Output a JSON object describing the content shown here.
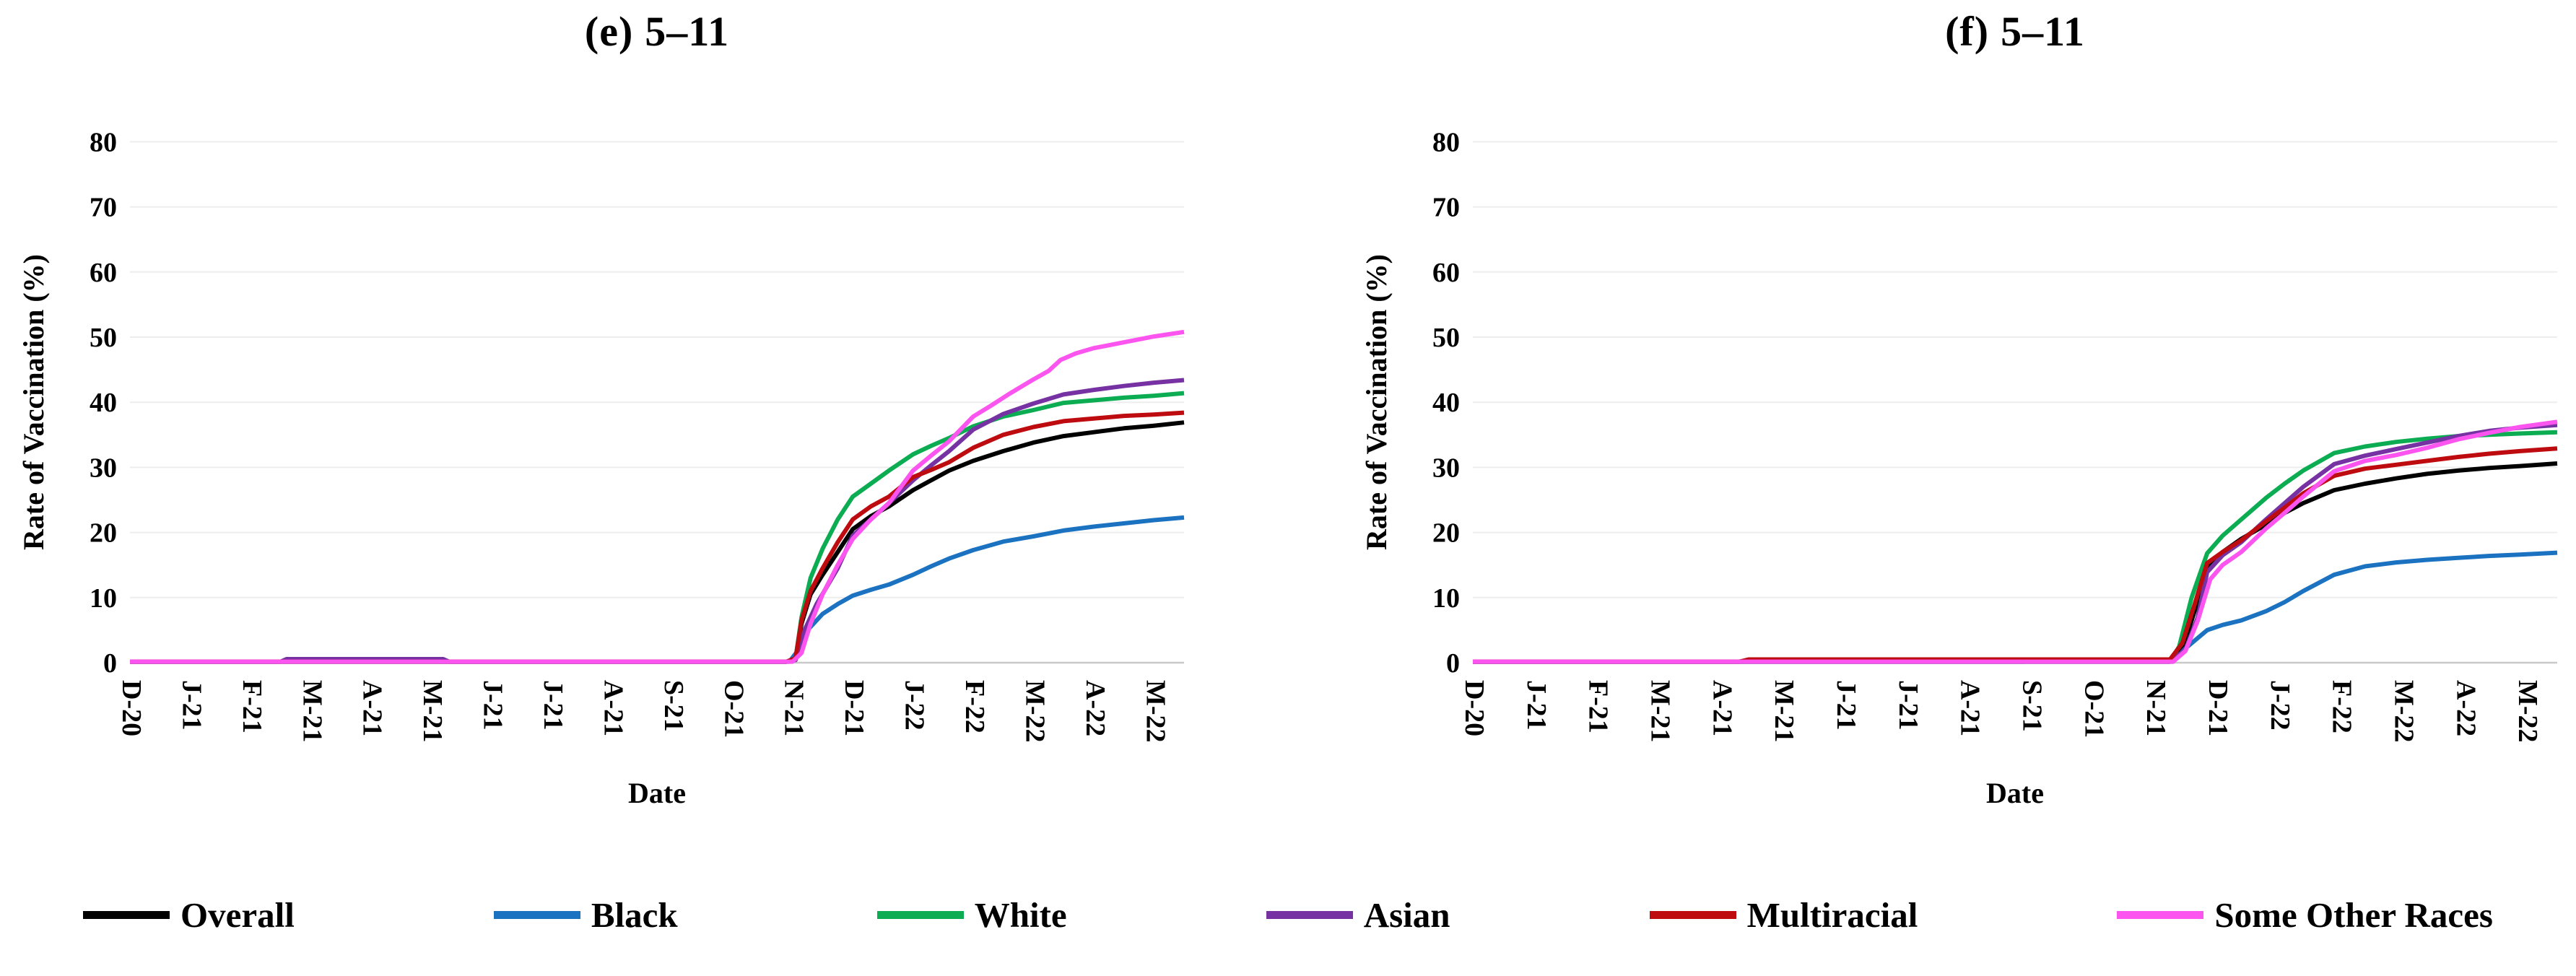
{
  "colors": {
    "overall": "#000000",
    "black": "#1B72C1",
    "white": "#0CAD52",
    "asian": "#7632A3",
    "multiracial": "#BE0B10",
    "some_other_races": "#FB54EF"
  },
  "legend": {
    "items": [
      {
        "label": "Overall",
        "color_key": "overall"
      },
      {
        "label": "Black",
        "color_key": "black"
      },
      {
        "label": "White",
        "color_key": "white"
      },
      {
        "label": "Asian",
        "color_key": "asian"
      },
      {
        "label": "Multiracial",
        "color_key": "multiracial"
      },
      {
        "label": "Some Other Races",
        "color_key": "some_other_races"
      }
    ]
  },
  "chart_data": [
    {
      "type": "line",
      "title": "(e) 5–11",
      "title_marker": "(e)",
      "title_rest": "5–11",
      "xlabel": "Date",
      "ylabel": "Rate of Vaccination (%)",
      "ylim": [
        0,
        80
      ],
      "y_ticks": [
        0,
        10,
        20,
        30,
        40,
        50,
        60,
        70,
        80
      ],
      "x_tick_labels": [
        "D-20",
        "J-21",
        "F-21",
        "M-21",
        "A-21",
        "M-21",
        "J-21",
        "J-21",
        "A-21",
        "S-21",
        "O-21",
        "N-21",
        "D-21",
        "J-22",
        "F-22",
        "M-22",
        "A-22",
        "M-22"
      ],
      "x_unit": "months since Dec 2020",
      "grid": "horizontal-light",
      "legend_position": "bottom-shared",
      "series": [
        {
          "name": "Overall",
          "color_key": "overall",
          "points": [
            [
              0,
              0.15
            ],
            [
              10.9,
              0.15
            ],
            [
              11.05,
              0.5
            ],
            [
              11.15,
              6
            ],
            [
              11.3,
              10.5
            ],
            [
              11.5,
              13.5
            ],
            [
              11.75,
              17
            ],
            [
              12,
              20.5
            ],
            [
              12.3,
              22.5
            ],
            [
              12.6,
              24
            ],
            [
              13,
              26.5
            ],
            [
              13.3,
              28
            ],
            [
              13.6,
              29.5
            ],
            [
              14,
              31
            ],
            [
              14.5,
              32.5
            ],
            [
              15,
              33.8
            ],
            [
              15.5,
              34.8
            ],
            [
              16,
              35.4
            ],
            [
              16.5,
              36
            ],
            [
              17,
              36.4
            ],
            [
              17.5,
              36.9
            ]
          ]
        },
        {
          "name": "Black",
          "color_key": "black",
          "points": [
            [
              0,
              0.15
            ],
            [
              10.95,
              0.15
            ],
            [
              11.1,
              2
            ],
            [
              11.25,
              5
            ],
            [
              11.5,
              7.5
            ],
            [
              11.75,
              9
            ],
            [
              12,
              10.3
            ],
            [
              12.3,
              11.2
            ],
            [
              12.6,
              12
            ],
            [
              13,
              13.5
            ],
            [
              13.3,
              14.8
            ],
            [
              13.6,
              16
            ],
            [
              14,
              17.3
            ],
            [
              14.5,
              18.6
            ],
            [
              15,
              19.4
            ],
            [
              15.5,
              20.3
            ],
            [
              16,
              20.9
            ],
            [
              16.5,
              21.4
            ],
            [
              17,
              21.9
            ],
            [
              17.5,
              22.3
            ]
          ]
        },
        {
          "name": "White",
          "color_key": "white",
          "points": [
            [
              0,
              0.15
            ],
            [
              10.9,
              0.15
            ],
            [
              11.05,
              0.6
            ],
            [
              11.15,
              7
            ],
            [
              11.3,
              13
            ],
            [
              11.5,
              17.5
            ],
            [
              11.75,
              22
            ],
            [
              12,
              25.5
            ],
            [
              12.3,
              27.5
            ],
            [
              12.6,
              29.5
            ],
            [
              13,
              32
            ],
            [
              13.3,
              33.3
            ],
            [
              13.6,
              34.5
            ],
            [
              14,
              36.3
            ],
            [
              14.5,
              37.8
            ],
            [
              15,
              38.8
            ],
            [
              15.5,
              39.9
            ],
            [
              16,
              40.3
            ],
            [
              16.5,
              40.7
            ],
            [
              17,
              41
            ],
            [
              17.5,
              41.4
            ]
          ]
        },
        {
          "name": "Asian",
          "color_key": "asian",
          "points": [
            [
              0,
              0.15
            ],
            [
              2.5,
              0.15
            ],
            [
              2.6,
              0.55
            ],
            [
              5.2,
              0.55
            ],
            [
              5.3,
              0.15
            ],
            [
              10.9,
              0.15
            ],
            [
              11.05,
              0.4
            ],
            [
              11.2,
              5
            ],
            [
              11.4,
              9
            ],
            [
              11.75,
              14.5
            ],
            [
              12,
              19.5
            ],
            [
              12.3,
              22
            ],
            [
              12.6,
              24.5
            ],
            [
              13,
              28
            ],
            [
              13.3,
              30.3
            ],
            [
              13.6,
              32.5
            ],
            [
              14,
              35.8
            ],
            [
              14.5,
              38.2
            ],
            [
              15,
              39.8
            ],
            [
              15.5,
              41.2
            ],
            [
              16,
              41.9
            ],
            [
              16.5,
              42.5
            ],
            [
              17,
              43
            ],
            [
              17.5,
              43.4
            ]
          ]
        },
        {
          "name": "Multiracial",
          "color_key": "multiracial",
          "points": [
            [
              0,
              0.15
            ],
            [
              10.9,
              0.15
            ],
            [
              11.05,
              0.7
            ],
            [
              11.15,
              6.5
            ],
            [
              11.3,
              11
            ],
            [
              11.5,
              14.5
            ],
            [
              11.75,
              18.5
            ],
            [
              12,
              22
            ],
            [
              12.3,
              24
            ],
            [
              12.6,
              25.5
            ],
            [
              13,
              28.5
            ],
            [
              13.3,
              29.6
            ],
            [
              13.6,
              30.8
            ],
            [
              14,
              33
            ],
            [
              14.5,
              35
            ],
            [
              15,
              36.2
            ],
            [
              15.5,
              37.1
            ],
            [
              16,
              37.5
            ],
            [
              16.5,
              37.9
            ],
            [
              17,
              38.1
            ],
            [
              17.5,
              38.4
            ]
          ]
        },
        {
          "name": "Some Other Races",
          "color_key": "some_other_races",
          "points": [
            [
              0,
              0.15
            ],
            [
              11,
              0.15
            ],
            [
              11.15,
              1.5
            ],
            [
              11.3,
              6
            ],
            [
              11.5,
              10.5
            ],
            [
              11.75,
              15
            ],
            [
              12,
              19
            ],
            [
              12.3,
              22
            ],
            [
              12.6,
              24.5
            ],
            [
              13,
              29.5
            ],
            [
              13.3,
              31.8
            ],
            [
              13.6,
              34
            ],
            [
              14,
              37.8
            ],
            [
              14.3,
              39.5
            ],
            [
              14.6,
              41.3
            ],
            [
              15,
              43.5
            ],
            [
              15.25,
              44.8
            ],
            [
              15.45,
              46.5
            ],
            [
              15.7,
              47.5
            ],
            [
              16,
              48.3
            ],
            [
              16.5,
              49.2
            ],
            [
              17,
              50.1
            ],
            [
              17.5,
              50.8
            ]
          ]
        }
      ]
    },
    {
      "type": "line",
      "title": "(f) 5–11",
      "title_marker": "(f)",
      "title_rest": "5–11",
      "xlabel": "Date",
      "ylabel": "Rate of Vaccination (%)",
      "ylim": [
        0,
        80
      ],
      "y_ticks": [
        0,
        10,
        20,
        30,
        40,
        50,
        60,
        70,
        80
      ],
      "x_tick_labels": [
        "D-20",
        "J-21",
        "F-21",
        "M-21",
        "A-21",
        "M-21",
        "J-21",
        "J-21",
        "A-21",
        "S-21",
        "O-21",
        "N-21",
        "D-21",
        "J-22",
        "F-22",
        "M-22",
        "A-22",
        "M-22"
      ],
      "x_unit": "months since Dec 2020",
      "grid": "horizontal-light",
      "legend_position": "bottom-shared",
      "series": [
        {
          "name": "Overall",
          "color_key": "overall",
          "points": [
            [
              0,
              0.15
            ],
            [
              11.25,
              0.15
            ],
            [
              11.45,
              2
            ],
            [
              11.65,
              8
            ],
            [
              11.85,
              14.6
            ],
            [
              12.1,
              17
            ],
            [
              12.4,
              19
            ],
            [
              12.8,
              21.2
            ],
            [
              13.1,
              23
            ],
            [
              13.4,
              24.5
            ],
            [
              13.9,
              26.5
            ],
            [
              14.4,
              27.5
            ],
            [
              14.9,
              28.3
            ],
            [
              15.4,
              29
            ],
            [
              15.9,
              29.5
            ],
            [
              16.4,
              29.9
            ],
            [
              16.9,
              30.2
            ],
            [
              17.5,
              30.6
            ]
          ]
        },
        {
          "name": "Black",
          "color_key": "black",
          "points": [
            [
              0,
              0.15
            ],
            [
              11.3,
              0.15
            ],
            [
              11.5,
              2.2
            ],
            [
              11.85,
              5
            ],
            [
              12.1,
              5.8
            ],
            [
              12.4,
              6.5
            ],
            [
              12.8,
              7.9
            ],
            [
              13.1,
              9.3
            ],
            [
              13.4,
              11
            ],
            [
              13.9,
              13.5
            ],
            [
              14.4,
              14.8
            ],
            [
              14.9,
              15.4
            ],
            [
              15.4,
              15.8
            ],
            [
              15.9,
              16.1
            ],
            [
              16.4,
              16.4
            ],
            [
              16.9,
              16.6
            ],
            [
              17.5,
              16.9
            ]
          ]
        },
        {
          "name": "White",
          "color_key": "white",
          "points": [
            [
              0,
              0.15
            ],
            [
              11.25,
              0.15
            ],
            [
              11.4,
              2.5
            ],
            [
              11.6,
              10
            ],
            [
              11.85,
              16.8
            ],
            [
              12.1,
              19.5
            ],
            [
              12.4,
              22
            ],
            [
              12.8,
              25.3
            ],
            [
              13.1,
              27.5
            ],
            [
              13.4,
              29.5
            ],
            [
              13.9,
              32.2
            ],
            [
              14.4,
              33.2
            ],
            [
              14.9,
              33.9
            ],
            [
              15.4,
              34.4
            ],
            [
              15.9,
              34.8
            ],
            [
              16.4,
              35
            ],
            [
              16.9,
              35.2
            ],
            [
              17.5,
              35.4
            ]
          ]
        },
        {
          "name": "Asian",
          "color_key": "asian",
          "points": [
            [
              0,
              0.15
            ],
            [
              8.9,
              0.15
            ],
            [
              9,
              0.5
            ],
            [
              11.3,
              0.5
            ],
            [
              11.5,
              2
            ],
            [
              11.7,
              7
            ],
            [
              11.85,
              13.9
            ],
            [
              12.1,
              16.5
            ],
            [
              12.4,
              18.5
            ],
            [
              12.8,
              22
            ],
            [
              13.1,
              24.5
            ],
            [
              13.4,
              27
            ],
            [
              13.9,
              30.5
            ],
            [
              14.4,
              31.8
            ],
            [
              14.9,
              32.8
            ],
            [
              15.4,
              33.8
            ],
            [
              15.9,
              34.8
            ],
            [
              16.4,
              35.6
            ],
            [
              16.9,
              36.1
            ],
            [
              17.5,
              36.5
            ]
          ]
        },
        {
          "name": "Multiracial",
          "color_key": "multiracial",
          "points": [
            [
              0,
              0.15
            ],
            [
              4.3,
              0.15
            ],
            [
              4.45,
              0.5
            ],
            [
              11.25,
              0.5
            ],
            [
              11.45,
              3
            ],
            [
              11.65,
              9
            ],
            [
              11.85,
              15.3
            ],
            [
              12.1,
              17
            ],
            [
              12.4,
              18.8
            ],
            [
              12.8,
              21.7
            ],
            [
              13.1,
              23.8
            ],
            [
              13.4,
              26
            ],
            [
              13.9,
              28.7
            ],
            [
              14.4,
              29.8
            ],
            [
              14.9,
              30.4
            ],
            [
              15.4,
              31
            ],
            [
              15.9,
              31.6
            ],
            [
              16.4,
              32.1
            ],
            [
              16.9,
              32.5
            ],
            [
              17.5,
              32.9
            ]
          ]
        },
        {
          "name": "Some Other Races",
          "color_key": "some_other_races",
          "points": [
            [
              0,
              0.15
            ],
            [
              11.3,
              0.15
            ],
            [
              11.5,
              1.8
            ],
            [
              11.7,
              6.5
            ],
            [
              11.9,
              12.8
            ],
            [
              12.1,
              15
            ],
            [
              12.4,
              17
            ],
            [
              12.8,
              20.6
            ],
            [
              13.1,
              23
            ],
            [
              13.4,
              25.5
            ],
            [
              13.9,
              29.4
            ],
            [
              14.4,
              31
            ],
            [
              14.9,
              31.9
            ],
            [
              15.4,
              33
            ],
            [
              15.9,
              34.3
            ],
            [
              16.4,
              35.3
            ],
            [
              16.9,
              36.2
            ],
            [
              17.5,
              37
            ]
          ]
        }
      ]
    }
  ]
}
